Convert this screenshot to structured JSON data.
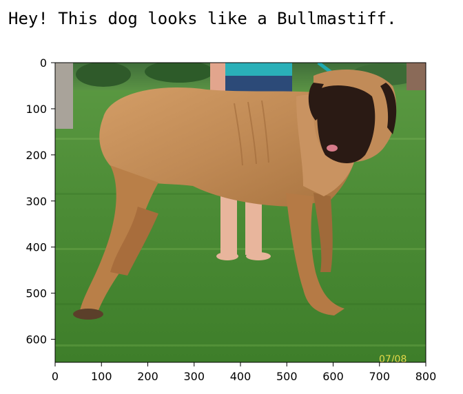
{
  "output": {
    "message": "Hey! This dog looks like a Bullmastiff."
  },
  "image": {
    "subject": "Bullmastiff dog standing on green grass with a person behind it",
    "watermark": "07/08"
  },
  "axes": {
    "x_ticks": [
      "0",
      "100",
      "200",
      "300",
      "400",
      "500",
      "600",
      "700",
      "800"
    ],
    "y_ticks": [
      "0",
      "100",
      "200",
      "300",
      "400",
      "500",
      "600"
    ],
    "xlim": [
      0,
      800
    ],
    "ylim": [
      650,
      0
    ]
  },
  "colors": {
    "grass": "#4a8a34",
    "dog": "#c08a55",
    "muzzle": "#2a1a14"
  }
}
